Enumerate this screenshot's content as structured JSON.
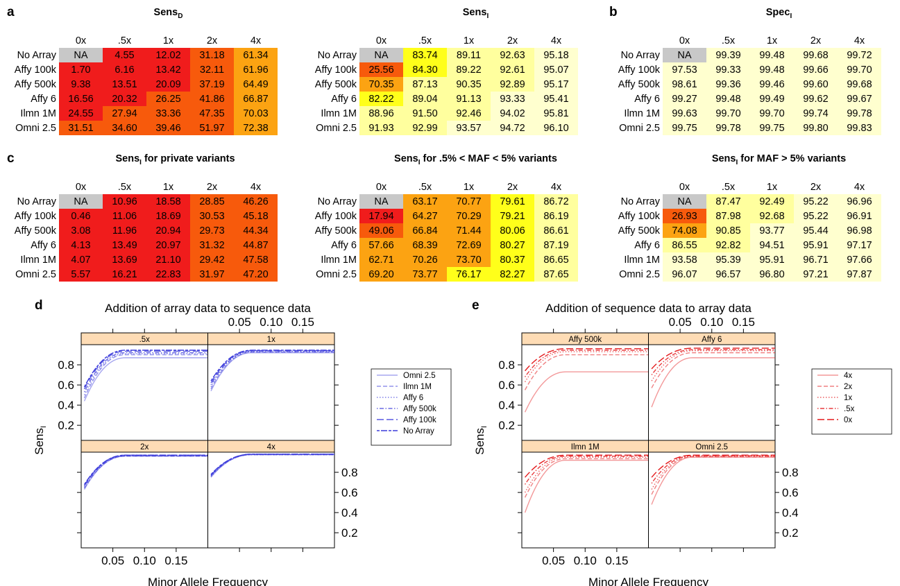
{
  "panel_letters": {
    "a": "a",
    "b": "b",
    "c": "c",
    "d": "d",
    "e": "e"
  },
  "tables": [
    {
      "title": "Sens",
      "sub": "D",
      "suffix": "",
      "cols": [
        "0x",
        ".5x",
        "1x",
        "2x",
        "4x"
      ],
      "rows": [
        {
          "label": "No Array",
          "values": [
            "NA",
            "4.55",
            "12.02",
            "31.18",
            "61.34"
          ]
        },
        {
          "label": "Affy 100k",
          "values": [
            "1.70",
            "6.16",
            "13.42",
            "32.11",
            "61.96"
          ]
        },
        {
          "label": "Affy 500k",
          "values": [
            "9.38",
            "13.51",
            "20.09",
            "37.19",
            "64.49"
          ]
        },
        {
          "label": "Affy 6",
          "values": [
            "16.56",
            "20.32",
            "26.25",
            "41.86",
            "66.87"
          ]
        },
        {
          "label": "Ilmn 1M",
          "values": [
            "24.55",
            "27.94",
            "33.36",
            "47.35",
            "70.03"
          ]
        },
        {
          "label": "Omni 2.5",
          "values": [
            "31.51",
            "34.60",
            "39.46",
            "51.97",
            "72.38"
          ]
        }
      ]
    },
    {
      "title": "Sens",
      "sub": "I",
      "suffix": "",
      "cols": [
        "0x",
        ".5x",
        "1x",
        "2x",
        "4x"
      ],
      "rows": [
        {
          "label": "No Array",
          "values": [
            "NA",
            "83.74",
            "89.11",
            "92.63",
            "95.18"
          ]
        },
        {
          "label": "Affy 100k",
          "values": [
            "25.56",
            "84.30",
            "89.22",
            "92.61",
            "95.07"
          ]
        },
        {
          "label": "Affy 500k",
          "values": [
            "70.35",
            "87.13",
            "90.35",
            "92.89",
            "95.17"
          ]
        },
        {
          "label": "Affy 6",
          "values": [
            "82.22",
            "89.04",
            "91.13",
            "93.33",
            "95.41"
          ]
        },
        {
          "label": "Ilmn 1M",
          "values": [
            "88.96",
            "91.50",
            "92.46",
            "94.02",
            "95.81"
          ]
        },
        {
          "label": "Omni 2.5",
          "values": [
            "91.93",
            "92.99",
            "93.57",
            "94.72",
            "96.10"
          ]
        }
      ]
    },
    {
      "title": "Spec",
      "sub": "I",
      "suffix": "",
      "cols": [
        "0x",
        ".5x",
        "1x",
        "2x",
        "4x"
      ],
      "rows": [
        {
          "label": "No Array",
          "values": [
            "NA",
            "99.39",
            "99.48",
            "99.68",
            "99.72"
          ]
        },
        {
          "label": "Affy 100k",
          "values": [
            "97.53",
            "99.33",
            "99.48",
            "99.66",
            "99.70"
          ]
        },
        {
          "label": "Affy 500k",
          "values": [
            "98.61",
            "99.36",
            "99.46",
            "99.60",
            "99.68"
          ]
        },
        {
          "label": "Affy 6",
          "values": [
            "99.27",
            "99.48",
            "99.49",
            "99.62",
            "99.67"
          ]
        },
        {
          "label": "Ilmn 1M",
          "values": [
            "99.63",
            "99.70",
            "99.70",
            "99.74",
            "99.78"
          ]
        },
        {
          "label": "Omni 2.5",
          "values": [
            "99.75",
            "99.78",
            "99.75",
            "99.80",
            "99.83"
          ]
        }
      ]
    },
    {
      "title": "Sens",
      "sub": "I",
      "suffix": " for private variants",
      "cols": [
        "0x",
        ".5x",
        "1x",
        "2x",
        "4x"
      ],
      "rows": [
        {
          "label": "No Array",
          "values": [
            "NA",
            "10.96",
            "18.58",
            "28.85",
            "46.26"
          ]
        },
        {
          "label": "Affy 100k",
          "values": [
            "0.46",
            "11.06",
            "18.69",
            "30.53",
            "45.18"
          ]
        },
        {
          "label": "Affy 500k",
          "values": [
            "3.08",
            "11.96",
            "20.94",
            "29.73",
            "44.34"
          ]
        },
        {
          "label": "Affy 6",
          "values": [
            "4.13",
            "13.49",
            "20.97",
            "31.32",
            "44.87"
          ]
        },
        {
          "label": "Ilmn 1M",
          "values": [
            "4.07",
            "13.69",
            "21.10",
            "29.42",
            "47.58"
          ]
        },
        {
          "label": "Omni 2.5",
          "values": [
            "5.57",
            "16.21",
            "22.83",
            "31.97",
            "47.20"
          ]
        }
      ]
    },
    {
      "title": "Sens",
      "sub": "I",
      "suffix": " for .5% < MAF < 5% variants",
      "cols": [
        "0x",
        ".5x",
        "1x",
        "2x",
        "4x"
      ],
      "rows": [
        {
          "label": "No Array",
          "values": [
            "NA",
            "63.17",
            "70.77",
            "79.61",
            "86.72"
          ]
        },
        {
          "label": "Affy 100k",
          "values": [
            "17.94",
            "64.27",
            "70.29",
            "79.21",
            "86.19"
          ]
        },
        {
          "label": "Affy 500k",
          "values": [
            "49.06",
            "66.84",
            "71.44",
            "80.06",
            "86.61"
          ]
        },
        {
          "label": "Affy 6",
          "values": [
            "57.66",
            "68.39",
            "72.69",
            "80.27",
            "87.19"
          ]
        },
        {
          "label": "Ilmn 1M",
          "values": [
            "62.71",
            "70.26",
            "73.70",
            "80.37",
            "86.65"
          ]
        },
        {
          "label": "Omni 2.5",
          "values": [
            "69.20",
            "73.77",
            "76.17",
            "82.27",
            "87.65"
          ]
        }
      ]
    },
    {
      "title": "Sens",
      "sub": "I",
      "suffix": " for MAF > 5% variants",
      "cols": [
        "0x",
        ".5x",
        "1x",
        "2x",
        "4x"
      ],
      "rows": [
        {
          "label": "No Array",
          "values": [
            "NA",
            "87.47",
            "92.49",
            "95.22",
            "96.96"
          ]
        },
        {
          "label": "Affy 100k",
          "values": [
            "26.93",
            "87.98",
            "92.68",
            "95.22",
            "96.91"
          ]
        },
        {
          "label": "Affy 500k",
          "values": [
            "74.08",
            "90.85",
            "93.77",
            "95.44",
            "96.98"
          ]
        },
        {
          "label": "Affy 6",
          "values": [
            "86.55",
            "92.82",
            "94.51",
            "95.91",
            "97.17"
          ]
        },
        {
          "label": "Ilmn 1M",
          "values": [
            "93.58",
            "95.39",
            "95.91",
            "96.71",
            "97.66"
          ]
        },
        {
          "label": "Omni 2.5",
          "values": [
            "96.07",
            "96.57",
            "96.80",
            "97.21",
            "97.87"
          ]
        }
      ]
    }
  ],
  "colors": {
    "na": "#c8c8c8",
    "red": "#f01c1c",
    "orange": "#f75a0c",
    "amber": "#fca312",
    "yellow": "#ffff1a",
    "lightyellow": "#ffff9e",
    "paleyellow": "#ffffcf",
    "strip": "#fedcb5",
    "blue": "#3b3bdb",
    "red_line": "#e41a1c"
  },
  "chart_data": [
    {
      "type": "line",
      "title": "Addition of array data to sequence data",
      "xlabel": "Minor Allele Frequency",
      "ylabel": "Sens",
      "ylabel_sub": "I",
      "x_ticks": [
        "0.05",
        "0.10",
        "0.15"
      ],
      "y_ticks": [
        "0.2",
        "0.4",
        "0.6",
        "0.8"
      ],
      "xlim": [
        0,
        0.2
      ],
      "ylim": [
        0.05,
        1.0
      ],
      "panels": [
        {
          "strip": ".5x",
          "starts": [
            0.44,
            0.47,
            0.5,
            0.53,
            0.56,
            0.58
          ],
          "plateaus": [
            0.87,
            0.9,
            0.91,
            0.92,
            0.935,
            0.945
          ]
        },
        {
          "strip": "1x",
          "starts": [
            0.54,
            0.56,
            0.58,
            0.6,
            0.62,
            0.64
          ],
          "plateaus": [
            0.92,
            0.925,
            0.93,
            0.935,
            0.94,
            0.945
          ]
        },
        {
          "strip": "2x",
          "starts": [
            0.63,
            0.64,
            0.65,
            0.66,
            0.67,
            0.68
          ],
          "plateaus": [
            0.96,
            0.96,
            0.965,
            0.965,
            0.97,
            0.97
          ]
        },
        {
          "strip": "4x",
          "starts": [
            0.75,
            0.76,
            0.76,
            0.77,
            0.77,
            0.78
          ],
          "plateaus": [
            0.975,
            0.975,
            0.975,
            0.98,
            0.98,
            0.98
          ]
        }
      ],
      "series": [
        {
          "name": "Omni 2.5",
          "dash": "solid",
          "opacity": 0.45
        },
        {
          "name": "Ilmn 1M",
          "dash": "dashed",
          "opacity": 0.55
        },
        {
          "name": "Affy 6",
          "dash": "dotted",
          "opacity": 0.65
        },
        {
          "name": "Affy 500k",
          "dash": "dotdash",
          "opacity": 0.75
        },
        {
          "name": "Affy 100k",
          "dash": "longdash",
          "opacity": 0.85
        },
        {
          "name": "No Array",
          "dash": "twodash",
          "opacity": 1.0
        }
      ]
    },
    {
      "type": "line",
      "title": "Addition of sequence data to array data",
      "xlabel": "Minor Allele Frequency",
      "ylabel": "Sens",
      "ylabel_sub": "I",
      "x_ticks": [
        "0.05",
        "0.10",
        "0.15"
      ],
      "y_ticks": [
        "0.2",
        "0.4",
        "0.6",
        "0.8"
      ],
      "xlim": [
        0,
        0.2
      ],
      "ylim": [
        0.05,
        1.0
      ],
      "panels": [
        {
          "strip": "Affy 500k",
          "starts": [
            0.33,
            0.55,
            0.63,
            0.68,
            0.74
          ],
          "plateaus": [
            0.73,
            0.9,
            0.93,
            0.945,
            0.96
          ]
        },
        {
          "strip": "Affy 6",
          "starts": [
            0.38,
            0.57,
            0.64,
            0.7,
            0.76
          ],
          "plateaus": [
            0.87,
            0.92,
            0.94,
            0.95,
            0.965
          ]
        },
        {
          "strip": "Ilmn 1M",
          "starts": [
            0.4,
            0.55,
            0.6,
            0.68,
            0.75
          ],
          "plateaus": [
            0.92,
            0.935,
            0.95,
            0.96,
            0.97
          ]
        },
        {
          "strip": "Omni 2.5",
          "starts": [
            0.48,
            0.58,
            0.63,
            0.69,
            0.75
          ],
          "plateaus": [
            0.95,
            0.955,
            0.96,
            0.965,
            0.97
          ]
        }
      ],
      "series": [
        {
          "name": "4x",
          "dash": "solid",
          "opacity": 0.45
        },
        {
          "name": "2x",
          "dash": "dashed",
          "opacity": 0.55
        },
        {
          "name": "1x",
          "dash": "dotted",
          "opacity": 0.7
        },
        {
          "name": ".5x",
          "dash": "dotdash",
          "opacity": 0.85
        },
        {
          "name": "0x",
          "dash": "longdash",
          "opacity": 1.0
        }
      ]
    }
  ]
}
